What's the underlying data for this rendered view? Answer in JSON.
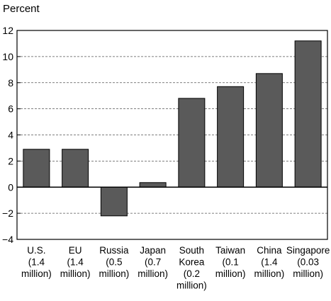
{
  "chart_data": {
    "type": "bar",
    "title": "",
    "ylabel": "Percent",
    "xlabel": "",
    "ylim": [
      -4,
      12
    ],
    "yticks": [
      12,
      10,
      8,
      6,
      4,
      2,
      0,
      -2,
      -4
    ],
    "grid": true,
    "categories": [
      {
        "lines": [
          "U.S.",
          "(1.4",
          "million)"
        ],
        "value": 2.9
      },
      {
        "lines": [
          "EU",
          "(1.4",
          "million)"
        ],
        "value": 2.9
      },
      {
        "lines": [
          "Russia",
          "(0.5",
          "million)"
        ],
        "value": -2.2
      },
      {
        "lines": [
          "Japan",
          "(0.7",
          "million)"
        ],
        "value": 0.35
      },
      {
        "lines": [
          "South",
          "Korea",
          "(0.2",
          "million)"
        ],
        "value": 6.8
      },
      {
        "lines": [
          "Taiwan",
          "(0.1",
          "million)"
        ],
        "value": 7.7
      },
      {
        "lines": [
          "China",
          "(1.4",
          "million)"
        ],
        "value": 8.7
      },
      {
        "lines": [
          "Singapore",
          "(0.03",
          "million)"
        ],
        "value": 11.2
      }
    ],
    "colors": {
      "bar": "#5a5a5a",
      "bar_stroke": "#000000",
      "grid": "#555555",
      "axis": "#000000"
    }
  }
}
